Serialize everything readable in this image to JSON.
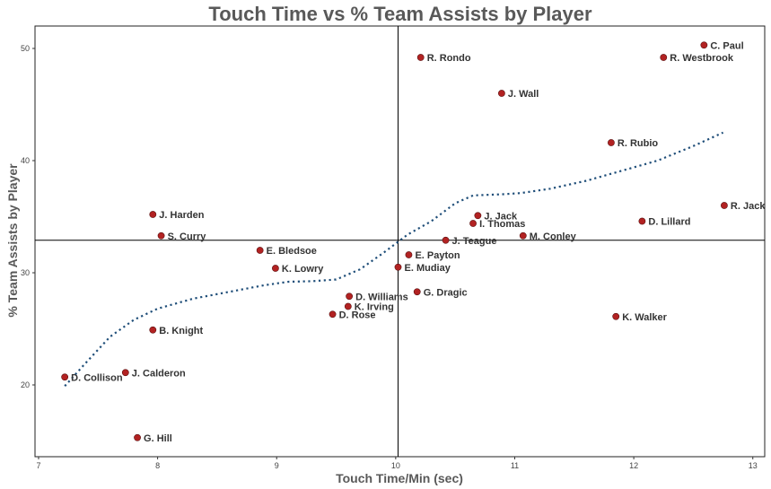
{
  "chart_data": {
    "type": "scatter",
    "title": "Touch Time vs % Team Assists by Player",
    "xlabel": "Touch Time/Min (sec)",
    "ylabel": "% Team Assists by Player",
    "xlim": [
      6.97,
      13.1
    ],
    "ylim": [
      13.6,
      52.0
    ],
    "xticks": [
      7,
      8,
      9,
      10,
      11,
      12,
      13
    ],
    "yticks": [
      20,
      30,
      40,
      50
    ],
    "grid": false,
    "reference_lines": {
      "x": 10.02,
      "y": 32.9
    },
    "point_color": "#b22222",
    "trend_color": "#1f4e79",
    "points": [
      {
        "label": "C. Paul",
        "x": 12.59,
        "y": 50.3
      },
      {
        "label": "R. Westbrook",
        "x": 12.25,
        "y": 49.2
      },
      {
        "label": "R. Rondo",
        "x": 10.21,
        "y": 49.2
      },
      {
        "label": "J. Wall",
        "x": 10.89,
        "y": 46.0
      },
      {
        "label": "R. Rubio",
        "x": 11.81,
        "y": 41.6
      },
      {
        "label": "R. Jack",
        "x": 12.76,
        "y": 36.0
      },
      {
        "label": "J. Harden",
        "x": 7.96,
        "y": 35.2
      },
      {
        "label": "J. Jack",
        "x": 10.69,
        "y": 35.1
      },
      {
        "label": "D. Lillard",
        "x": 12.07,
        "y": 34.6
      },
      {
        "label": "I. Thomas",
        "x": 10.65,
        "y": 34.4
      },
      {
        "label": "S. Curry",
        "x": 8.03,
        "y": 33.3
      },
      {
        "label": "M. Conley",
        "x": 11.07,
        "y": 33.3
      },
      {
        "label": "J. Teague",
        "x": 10.42,
        "y": 32.9
      },
      {
        "label": "E. Bledsoe",
        "x": 8.86,
        "y": 32.0
      },
      {
        "label": "E. Payton",
        "x": 10.11,
        "y": 31.6
      },
      {
        "label": "K. Lowry",
        "x": 8.99,
        "y": 30.4
      },
      {
        "label": "E. Mudiay",
        "x": 10.02,
        "y": 30.5
      },
      {
        "label": "G. Dragic",
        "x": 10.18,
        "y": 28.3
      },
      {
        "label": "D. Williams",
        "x": 9.61,
        "y": 27.9
      },
      {
        "label": "K. Irving",
        "x": 9.6,
        "y": 27.0
      },
      {
        "label": "D. Rose",
        "x": 9.47,
        "y": 26.3
      },
      {
        "label": "K. Walker",
        "x": 11.85,
        "y": 26.1
      },
      {
        "label": "B. Knight",
        "x": 7.96,
        "y": 24.9
      },
      {
        "label": "J. Calderon",
        "x": 7.73,
        "y": 21.1
      },
      {
        "label": "D. Collison",
        "x": 7.22,
        "y": 20.7
      },
      {
        "label": "G. Hill",
        "x": 7.83,
        "y": 15.3
      }
    ],
    "trend": [
      {
        "x": 7.22,
        "y": 19.9
      },
      {
        "x": 7.4,
        "y": 22.0
      },
      {
        "x": 7.6,
        "y": 24.3
      },
      {
        "x": 7.8,
        "y": 25.8
      },
      {
        "x": 8.0,
        "y": 26.8
      },
      {
        "x": 8.3,
        "y": 27.7
      },
      {
        "x": 8.6,
        "y": 28.3
      },
      {
        "x": 8.9,
        "y": 28.9
      },
      {
        "x": 9.1,
        "y": 29.2
      },
      {
        "x": 9.3,
        "y": 29.25
      },
      {
        "x": 9.5,
        "y": 29.4
      },
      {
        "x": 9.7,
        "y": 30.3
      },
      {
        "x": 9.9,
        "y": 31.8
      },
      {
        "x": 10.1,
        "y": 33.4
      },
      {
        "x": 10.3,
        "y": 34.6
      },
      {
        "x": 10.5,
        "y": 36.2
      },
      {
        "x": 10.65,
        "y": 36.9
      },
      {
        "x": 10.9,
        "y": 37.0
      },
      {
        "x": 11.05,
        "y": 37.1
      },
      {
        "x": 11.3,
        "y": 37.5
      },
      {
        "x": 11.6,
        "y": 38.2
      },
      {
        "x": 11.9,
        "y": 39.1
      },
      {
        "x": 12.2,
        "y": 40.0
      },
      {
        "x": 12.5,
        "y": 41.3
      },
      {
        "x": 12.75,
        "y": 42.5
      }
    ]
  }
}
